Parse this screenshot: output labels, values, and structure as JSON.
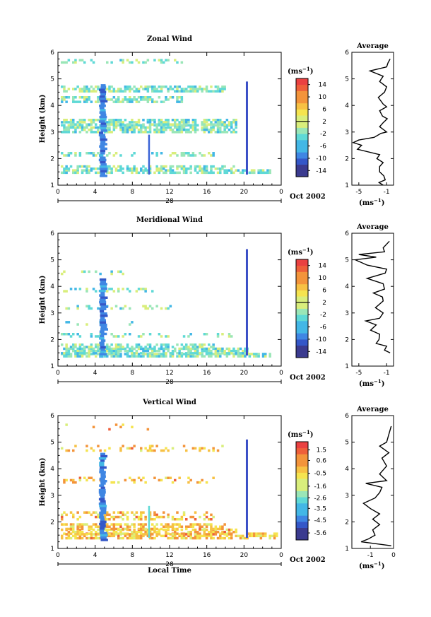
{
  "chart_data": [
    {
      "type": "heatmap",
      "title": "Zonal Wind",
      "ylabel": "Height (km)",
      "xlabel": "",
      "date_label": "28",
      "month_label": "Oct 2002",
      "xticks": [
        "0",
        "4",
        "8",
        "12",
        "16",
        "20",
        "0"
      ],
      "xlim": [
        0,
        24
      ],
      "ylim": [
        1,
        6
      ],
      "yticks": [
        "1",
        "2",
        "3",
        "4",
        "5",
        "6"
      ],
      "colorbar": {
        "unit": "(ms",
        "unit_exp": "−1",
        "unit_close": ")",
        "ticks": [
          "14",
          "10",
          "6",
          "2",
          "-2",
          "-6",
          "-10",
          "-14"
        ],
        "range": [
          -16,
          16
        ],
        "zero_line": 2
      },
      "side": {
        "title": "Average",
        "xlabel": "(ms",
        "xlabel_exp": "−1",
        "xlabel_close": ")",
        "xticks": [
          "-5",
          "-1"
        ],
        "xlim": [
          -6,
          0
        ],
        "profile": [
          [
            -1.5,
            1.0
          ],
          [
            -2.1,
            1.1
          ],
          [
            -1.2,
            1.2
          ],
          [
            -1.4,
            1.35
          ],
          [
            -2.0,
            1.5
          ],
          [
            -2.0,
            1.7
          ],
          [
            -1.5,
            1.85
          ],
          [
            -2.4,
            2.0
          ],
          [
            -2.0,
            2.15
          ],
          [
            -5.2,
            2.35
          ],
          [
            -4.6,
            2.5
          ],
          [
            -5.8,
            2.6
          ],
          [
            -5.0,
            2.7
          ],
          [
            -2.8,
            2.8
          ],
          [
            -1.8,
            2.95
          ],
          [
            -1.0,
            3.0
          ],
          [
            -1.5,
            3.1
          ],
          [
            -2.0,
            3.2
          ],
          [
            -1.5,
            3.35
          ],
          [
            -0.9,
            3.5
          ],
          [
            -1.6,
            3.6
          ],
          [
            -2.0,
            3.8
          ],
          [
            -1.0,
            3.95
          ],
          [
            -1.5,
            4.05
          ],
          [
            -2.2,
            4.3
          ],
          [
            -1.3,
            4.5
          ],
          [
            -1.0,
            4.7
          ],
          [
            -2.0,
            4.9
          ],
          [
            -1.5,
            5.1
          ],
          [
            -3.4,
            5.3
          ],
          [
            -1.0,
            5.45
          ],
          [
            -0.8,
            5.6
          ],
          [
            -0.5,
            5.75
          ]
        ]
      }
    },
    {
      "type": "heatmap",
      "title": "Meridional Wind",
      "ylabel": "Height (km)",
      "xlabel": "",
      "date_label": "28",
      "month_label": "Oct 2002",
      "xticks": [
        "0",
        "4",
        "8",
        "12",
        "16",
        "20",
        "0"
      ],
      "xlim": [
        0,
        24
      ],
      "ylim": [
        1,
        6
      ],
      "yticks": [
        "1",
        "2",
        "3",
        "4",
        "5",
        "6"
      ],
      "colorbar": {
        "unit": "(ms",
        "unit_exp": "−1",
        "unit_close": ")",
        "ticks": [
          "14",
          "10",
          "6",
          "2",
          "-2",
          "-6",
          "-10",
          "-14"
        ],
        "range": [
          -16,
          16
        ],
        "zero_line": 2
      },
      "side": {
        "title": "Average",
        "xlabel": "(ms",
        "xlabel_exp": "−1",
        "xlabel_close": ")",
        "xticks": [
          "-5",
          "-1"
        ],
        "xlim": [
          -6,
          0
        ],
        "profile": [
          [
            -0.5,
            1.5
          ],
          [
            -1.3,
            1.6
          ],
          [
            -1.0,
            1.75
          ],
          [
            -2.5,
            1.85
          ],
          [
            -2.1,
            2.0
          ],
          [
            -2.0,
            2.2
          ],
          [
            -3.3,
            2.35
          ],
          [
            -2.5,
            2.55
          ],
          [
            -4.0,
            2.7
          ],
          [
            -2.0,
            2.8
          ],
          [
            -1.5,
            3.0
          ],
          [
            -2.6,
            3.2
          ],
          [
            -1.5,
            3.45
          ],
          [
            -1.6,
            3.6
          ],
          [
            -2.9,
            3.75
          ],
          [
            -1.3,
            3.9
          ],
          [
            -1.5,
            4.1
          ],
          [
            -3.8,
            4.3
          ],
          [
            -1.2,
            4.5
          ],
          [
            -1.0,
            4.65
          ],
          [
            -3.8,
            4.8
          ],
          [
            -5.5,
            5.0
          ],
          [
            -2.5,
            5.1
          ],
          [
            -5.0,
            5.2
          ],
          [
            -1.3,
            5.3
          ],
          [
            -1.5,
            5.45
          ],
          [
            -0.6,
            5.7
          ]
        ]
      }
    },
    {
      "type": "heatmap",
      "title": "Vertical Wind",
      "ylabel": "Height (km)",
      "xlabel": "Local Time",
      "date_label": "28",
      "month_label": "Oct 2002",
      "xticks": [
        "0",
        "4",
        "8",
        "12",
        "16",
        "20",
        "0"
      ],
      "xlim": [
        0,
        24
      ],
      "ylim": [
        1,
        6
      ],
      "yticks": [
        "1",
        "2",
        "3",
        "4",
        "5",
        "6"
      ],
      "colorbar": {
        "unit": "(ms",
        "unit_exp": "−1",
        "unit_close": ")",
        "ticks": [
          "1.5",
          "0.6",
          "-0.5",
          "-1.6",
          "-2.6",
          "-3.5",
          "-4.5",
          "-5.6"
        ],
        "range": [
          -6.2,
          2.2
        ],
        "zero_line": null
      },
      "side": {
        "title": "Average",
        "xlabel": "(ms",
        "xlabel_exp": "−1",
        "xlabel_close": ")",
        "xticks": [
          "-1",
          "0"
        ],
        "xlim": [
          -1.8,
          0
        ],
        "profile": [
          [
            -0.1,
            1.1
          ],
          [
            -1.4,
            1.25
          ],
          [
            -1.1,
            1.35
          ],
          [
            -0.8,
            1.5
          ],
          [
            -0.9,
            1.7
          ],
          [
            -0.6,
            1.9
          ],
          [
            -0.9,
            2.1
          ],
          [
            -0.6,
            2.3
          ],
          [
            -1.0,
            2.5
          ],
          [
            -1.3,
            2.7
          ],
          [
            -0.8,
            2.9
          ],
          [
            -0.6,
            3.1
          ],
          [
            -0.5,
            3.3
          ],
          [
            -1.2,
            3.45
          ],
          [
            -0.3,
            3.55
          ],
          [
            -0.6,
            3.8
          ],
          [
            -0.3,
            4.1
          ],
          [
            -0.5,
            4.4
          ],
          [
            -0.2,
            4.6
          ],
          [
            -0.6,
            4.85
          ],
          [
            -0.3,
            5.0
          ],
          [
            -0.2,
            5.3
          ],
          [
            -0.1,
            5.6
          ]
        ]
      }
    }
  ]
}
